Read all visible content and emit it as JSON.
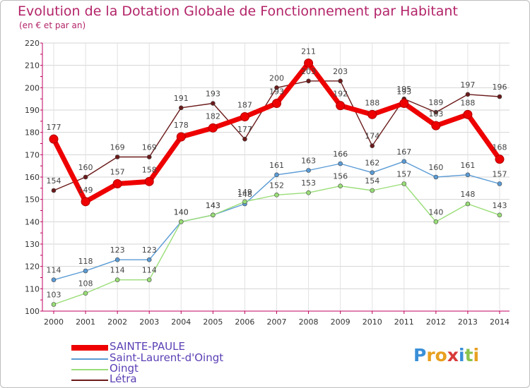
{
  "chart_data": {
    "type": "line",
    "title": "Evolution de la Dotation Globale de Fonctionnement par Habitant",
    "subtitle": "(en € et par an)",
    "x": [
      "2000",
      "2001",
      "2002",
      "2003",
      "2004",
      "2005",
      "2006",
      "2007",
      "2008",
      "2009",
      "2010",
      "2011",
      "2012",
      "2013",
      "2014"
    ],
    "ylim": [
      100,
      220
    ],
    "yticks": [
      100,
      110,
      120,
      130,
      140,
      150,
      160,
      170,
      180,
      190,
      200,
      210,
      220
    ],
    "grid": true,
    "legend_position": "bottom-left",
    "series": [
      {
        "name": "SAINTE-PAULE",
        "color": "#ee0000",
        "values": [
          177,
          149,
          157,
          158,
          178,
          182,
          187,
          193,
          211,
          192,
          188,
          193,
          183,
          188,
          168
        ]
      },
      {
        "name": "Saint-Laurent-d'Oingt",
        "color": "#5a9bd5",
        "values": [
          114,
          118,
          123,
          123,
          140,
          143,
          148,
          161,
          163,
          166,
          162,
          167,
          160,
          161,
          157
        ]
      },
      {
        "name": "Oingt",
        "color": "#99dd77",
        "values": [
          103,
          108,
          114,
          114,
          140,
          143,
          149,
          152,
          153,
          156,
          154,
          157,
          140,
          148,
          143
        ]
      },
      {
        "name": "Létra",
        "color": "#6b1a1a",
        "values": [
          154,
          160,
          169,
          169,
          191,
          193,
          177,
          200,
          203,
          203,
          174,
          195,
          189,
          197,
          196
        ]
      }
    ]
  },
  "logo": {
    "text": "Proxiti",
    "letters": [
      "P",
      "r",
      "o",
      "x",
      "i",
      "t",
      "i"
    ],
    "colors": [
      "#3a8fd8",
      "#e8a020",
      "#e8a020",
      "#d83a3a",
      "#3a8fd8",
      "#8bc34a",
      "#e8a020"
    ]
  }
}
